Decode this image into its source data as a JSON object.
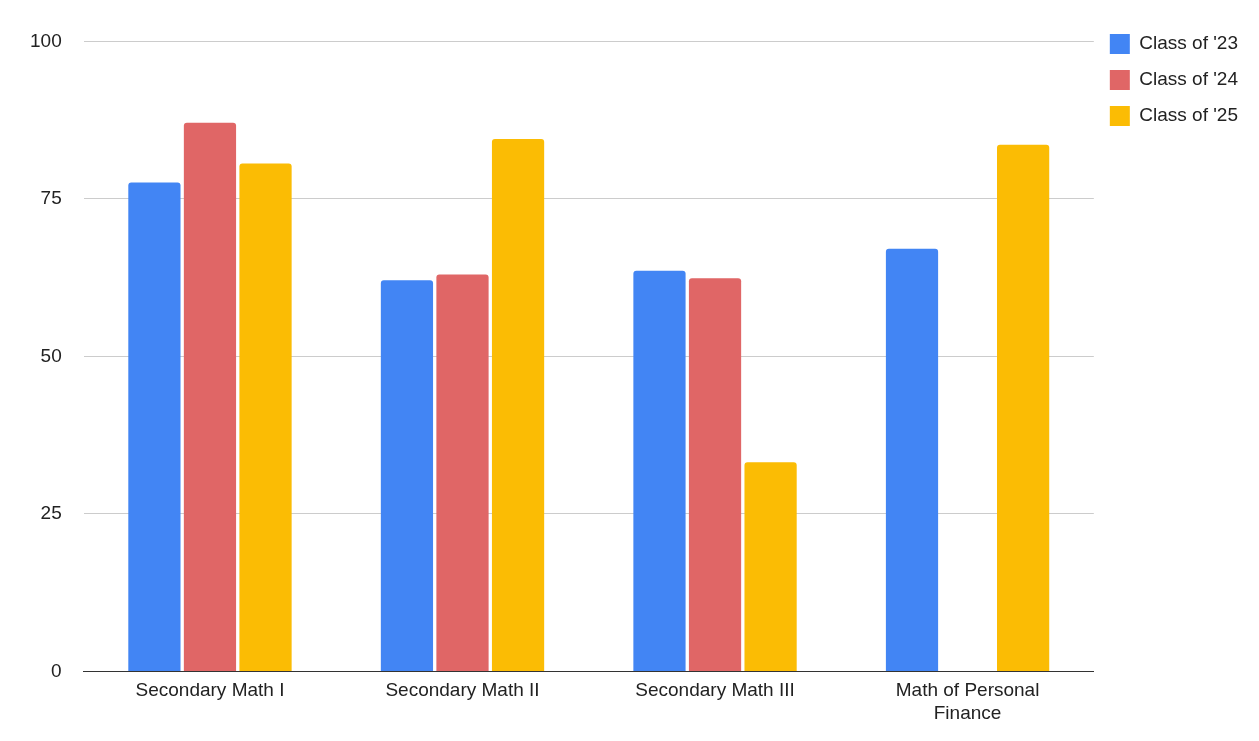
{
  "chart_data": {
    "type": "bar",
    "categories": [
      "Secondary Math I",
      "Secondary Math II",
      "Secondary Math III",
      "Math of Personal Finance"
    ],
    "series": [
      {
        "name": "Class of '23",
        "color": "#4285f4",
        "values": [
          77.6,
          62.1,
          63.6,
          67.1
        ]
      },
      {
        "name": "Class of '24",
        "color": "#e06666",
        "values": [
          87.1,
          63.0,
          62.4,
          null
        ]
      },
      {
        "name": "Class of '25",
        "color": "#fbbc04",
        "values": [
          80.6,
          84.5,
          33.2,
          83.6
        ]
      }
    ],
    "ylim": [
      0,
      100
    ],
    "yticks": [
      0,
      25,
      50,
      75,
      100
    ],
    "grid": "y",
    "legend": "top right"
  }
}
